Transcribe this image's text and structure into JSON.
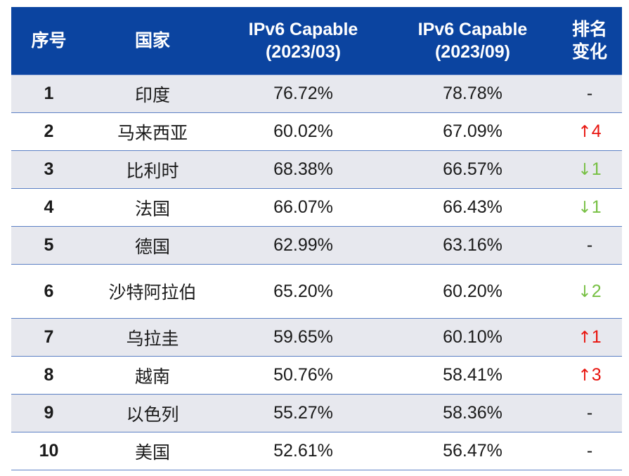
{
  "header": {
    "col_index": "序号",
    "col_country": "国家",
    "col_2023_03": [
      "IPv6 Capable",
      "(2023/03)"
    ],
    "col_2023_09": [
      "IPv6 Capable",
      "(2023/09)"
    ],
    "col_change": [
      "排名",
      "变化"
    ]
  },
  "rows": [
    {
      "rank": "1",
      "country": "印度",
      "v1": "76.72%",
      "v2": "78.78%",
      "change_dir": "none",
      "change_arrow": "",
      "change_value": "-"
    },
    {
      "rank": "2",
      "country": "马来西亚",
      "v1": "60.02%",
      "v2": "67.09%",
      "change_dir": "up",
      "change_arrow": "↑",
      "change_value": "4"
    },
    {
      "rank": "3",
      "country": "比利时",
      "v1": "68.38%",
      "v2": "66.57%",
      "change_dir": "down",
      "change_arrow": "↓",
      "change_value": "1"
    },
    {
      "rank": "4",
      "country": "法国",
      "v1": "66.07%",
      "v2": "66.43%",
      "change_dir": "down",
      "change_arrow": "↓",
      "change_value": "1"
    },
    {
      "rank": "5",
      "country": "德国",
      "v1": "62.99%",
      "v2": "63.16%",
      "change_dir": "none",
      "change_arrow": "",
      "change_value": "-"
    },
    {
      "rank": "6",
      "country": "沙特阿拉伯",
      "v1": "65.20%",
      "v2": "60.20%",
      "change_dir": "down",
      "change_arrow": "↓",
      "change_value": "2"
    },
    {
      "rank": "7",
      "country": "乌拉圭",
      "v1": "59.65%",
      "v2": "60.10%",
      "change_dir": "up",
      "change_arrow": "↑",
      "change_value": "1"
    },
    {
      "rank": "8",
      "country": "越南",
      "v1": "50.76%",
      "v2": "58.41%",
      "change_dir": "up",
      "change_arrow": "↑",
      "change_value": "3"
    },
    {
      "rank": "9",
      "country": "以色列",
      "v1": "55.27%",
      "v2": "58.36%",
      "change_dir": "none",
      "change_arrow": "",
      "change_value": "-"
    },
    {
      "rank": "10",
      "country": "美国",
      "v1": "52.61%",
      "v2": "56.47%",
      "change_dir": "none",
      "change_arrow": "",
      "change_value": "-"
    }
  ],
  "colors": {
    "header_bg": "#0b44a0",
    "up": "#e8140e",
    "down": "#77c044",
    "stripe": "#e7e8ee"
  }
}
